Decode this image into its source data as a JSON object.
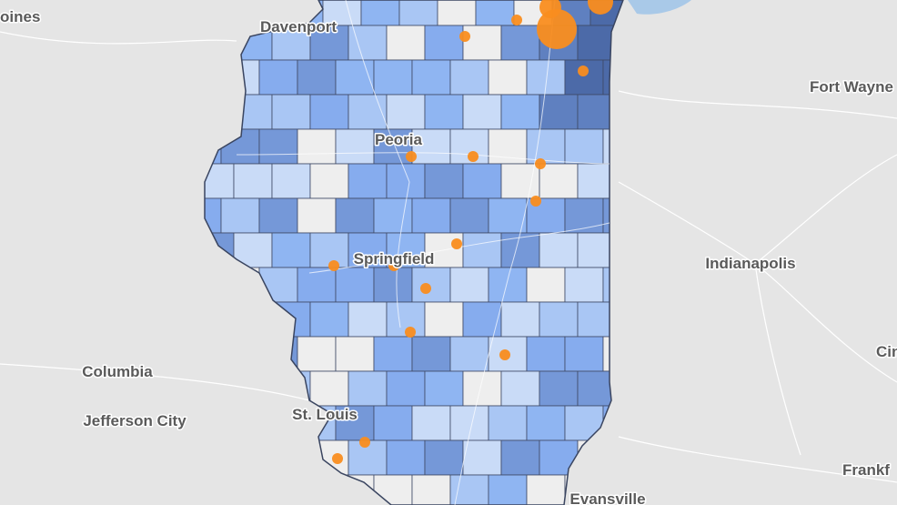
{
  "cities": [
    {
      "label": "oines"
    },
    {
      "label": "Davenport"
    },
    {
      "label": "Fort Wayne"
    },
    {
      "label": "Peoria"
    },
    {
      "label": "Springfield"
    },
    {
      "label": "Indianapolis"
    },
    {
      "label": "Columbia"
    },
    {
      "label": "Jefferson City"
    },
    {
      "label": "St. Louis"
    },
    {
      "label": "Cin"
    },
    {
      "label": "Frankf"
    },
    {
      "label": "Evansville"
    }
  ]
}
